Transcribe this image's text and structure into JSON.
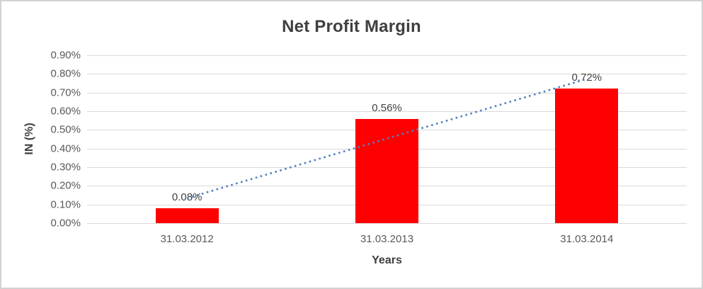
{
  "chart_data": {
    "type": "bar",
    "title": "Net Profit Margin",
    "xlabel": "Years",
    "ylabel": "IN (%)",
    "categories": [
      "31.03.2012",
      "31.03.2013",
      "31.03.2014"
    ],
    "values": [
      0.08,
      0.56,
      0.72
    ],
    "value_labels": [
      "0.08%",
      "0.56%",
      "0.72%"
    ],
    "unit": "percent",
    "ylim": [
      0,
      0.9
    ],
    "y_ticks": [
      "0.90%",
      "0.80%",
      "0.70%",
      "0.60%",
      "0.50%",
      "0.40%",
      "0.30%",
      "0.20%",
      "0.10%",
      "0.00%"
    ],
    "grid": "horizontal",
    "legend": "none",
    "bar_color": "#ff0000",
    "trendline": {
      "type": "linear",
      "style": "dotted",
      "color": "#4f81bd"
    }
  },
  "frame": {
    "background": "#ffffff",
    "border_color": "#d2d2d2",
    "gridline_color": "#d9d9d9",
    "title_color": "#3f3f3f",
    "tick_color": "#595959"
  }
}
